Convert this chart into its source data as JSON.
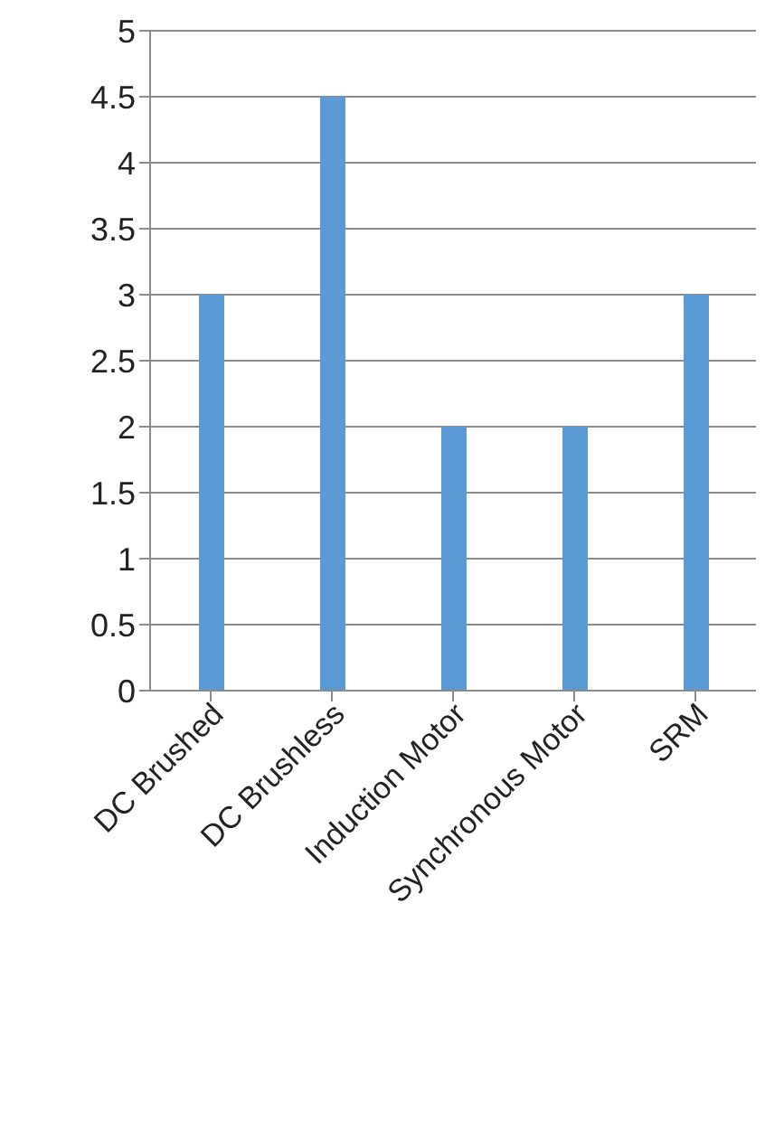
{
  "chart_data": {
    "type": "bar",
    "categories": [
      "DC Brushed",
      "DC Brushless",
      "Induction Motor",
      "Synchronous Motor",
      "SRM"
    ],
    "values": [
      3,
      4.5,
      2,
      2,
      3
    ],
    "color": "#5b9bd5",
    "ylim": [
      0,
      5
    ],
    "yticks": [
      0,
      0.5,
      1,
      1.5,
      2,
      2.5,
      3,
      3.5,
      4,
      4.5,
      5
    ],
    "grid": "y"
  }
}
